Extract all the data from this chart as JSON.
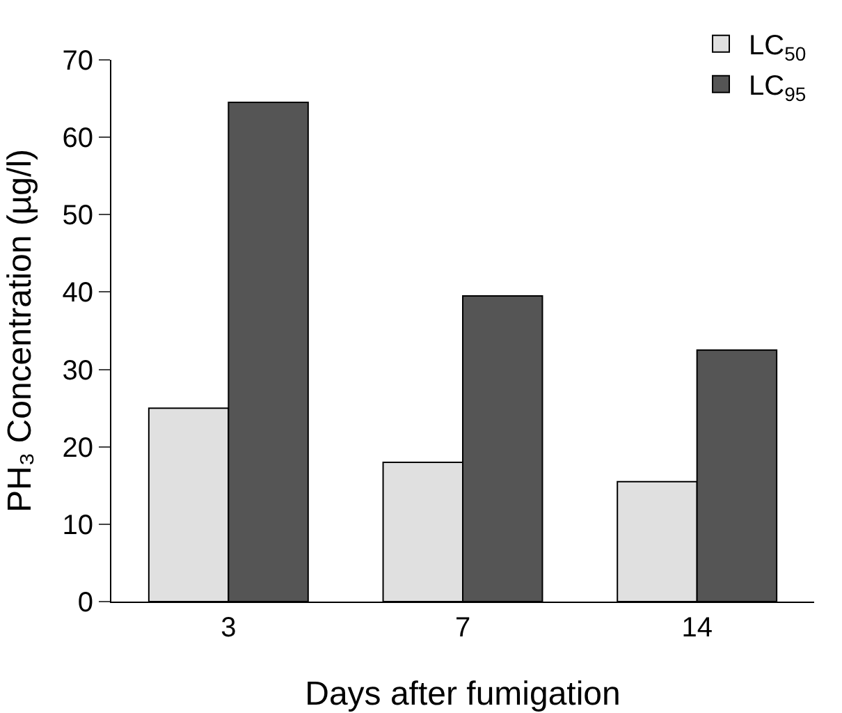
{
  "chart_data": {
    "type": "bar",
    "xlabel": "Days after fumigation",
    "ylabel": "PH₃ Concentration (µg/l)",
    "categories": [
      "3",
      "7",
      "14"
    ],
    "series": [
      {
        "name": "LC$_{50}$",
        "color": "#e0e0e0",
        "values": [
          25,
          18,
          15.5
        ]
      },
      {
        "name": "LC$_{95}$",
        "color": "#555555",
        "values": [
          64.5,
          39.5,
          32.5
        ]
      }
    ],
    "ylim": [
      0,
      70
    ],
    "yticks": [
      0,
      10,
      20,
      30,
      40,
      50,
      60,
      70
    ],
    "grid": false,
    "legend": "top right"
  }
}
